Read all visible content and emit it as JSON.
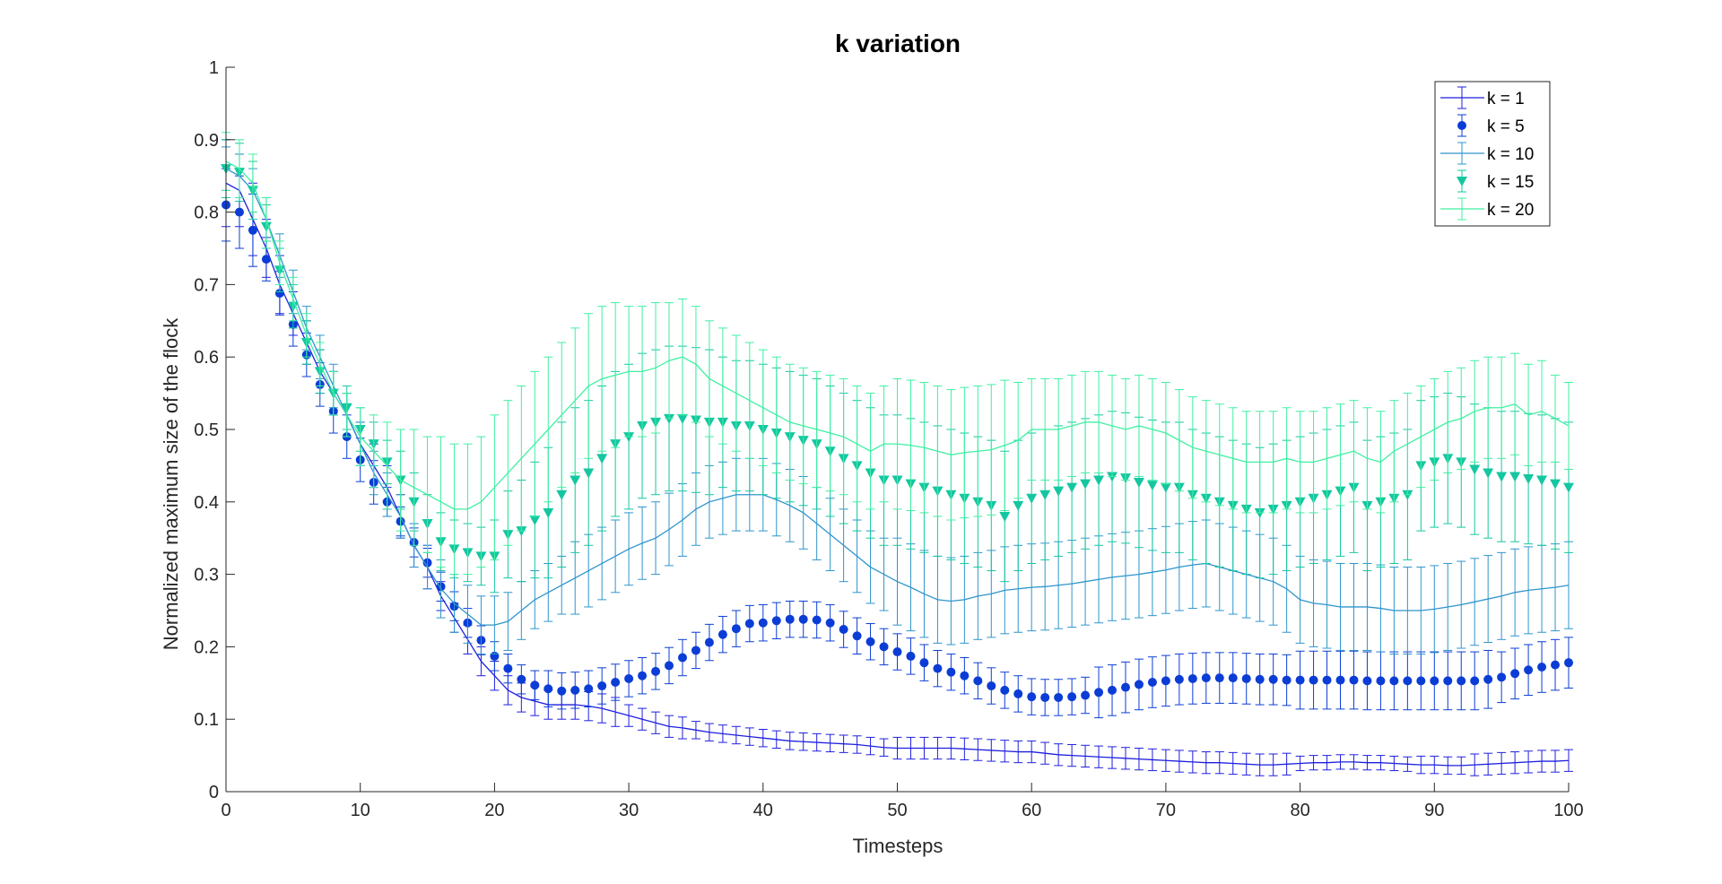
{
  "chart_data": {
    "type": "line",
    "title": "k variation",
    "xlabel": "Timesteps",
    "ylabel": "Normalized maximum size of the flock",
    "xlim": [
      0,
      100
    ],
    "ylim": [
      0,
      1
    ],
    "x_ticks": [
      0,
      10,
      20,
      30,
      40,
      50,
      60,
      70,
      80,
      90,
      100
    ],
    "y_ticks": [
      0,
      0.1,
      0.2,
      0.3,
      0.4,
      0.5,
      0.6,
      0.7,
      0.8,
      0.9,
      1
    ],
    "x_tick_labels": [
      "0",
      "10",
      "20",
      "30",
      "40",
      "50",
      "60",
      "70",
      "80",
      "90",
      "100"
    ],
    "y_tick_labels": [
      "0",
      "0.1",
      "0.2",
      "0.3",
      "0.4",
      "0.5",
      "0.6",
      "0.7",
      "0.8",
      "0.9",
      "1"
    ],
    "grid": false,
    "legend_position": "top-right",
    "x": [
      0,
      1,
      2,
      3,
      4,
      5,
      6,
      7,
      8,
      9,
      10,
      11,
      12,
      13,
      14,
      15,
      16,
      17,
      18,
      19,
      20,
      21,
      22,
      23,
      24,
      25,
      26,
      27,
      28,
      29,
      30,
      31,
      32,
      33,
      34,
      35,
      36,
      37,
      38,
      39,
      40,
      41,
      42,
      43,
      44,
      45,
      46,
      47,
      48,
      49,
      50,
      51,
      52,
      53,
      54,
      55,
      56,
      57,
      58,
      59,
      60,
      61,
      62,
      63,
      64,
      65,
      66,
      67,
      68,
      69,
      70,
      71,
      72,
      73,
      74,
      75,
      76,
      77,
      78,
      79,
      80,
      81,
      82,
      83,
      84,
      85,
      86,
      87,
      88,
      89,
      90,
      91,
      92,
      93,
      94,
      95,
      96,
      97,
      98,
      99,
      100
    ],
    "series": [
      {
        "name": "k = 1",
        "style": "line",
        "color": "#1f1fe0",
        "values": [
          0.84,
          0.83,
          0.79,
          0.75,
          0.7,
          0.66,
          0.62,
          0.58,
          0.55,
          0.52,
          0.48,
          0.45,
          0.42,
          0.38,
          0.34,
          0.31,
          0.27,
          0.24,
          0.21,
          0.18,
          0.16,
          0.14,
          0.13,
          0.125,
          0.12,
          0.12,
          0.12,
          0.118,
          0.115,
          0.11,
          0.105,
          0.1,
          0.095,
          0.09,
          0.088,
          0.085,
          0.082,
          0.08,
          0.078,
          0.076,
          0.074,
          0.072,
          0.07,
          0.069,
          0.068,
          0.067,
          0.066,
          0.065,
          0.063,
          0.061,
          0.06,
          0.06,
          0.06,
          0.06,
          0.06,
          0.059,
          0.058,
          0.057,
          0.056,
          0.055,
          0.055,
          0.053,
          0.051,
          0.05,
          0.049,
          0.048,
          0.047,
          0.046,
          0.045,
          0.044,
          0.043,
          0.042,
          0.041,
          0.04,
          0.04,
          0.039,
          0.038,
          0.037,
          0.037,
          0.038,
          0.039,
          0.04,
          0.04,
          0.041,
          0.041,
          0.04,
          0.04,
          0.039,
          0.038,
          0.037,
          0.037,
          0.036,
          0.036,
          0.037,
          0.038,
          0.039,
          0.04,
          0.041,
          0.042,
          0.042,
          0.043
        ],
        "errors": [
          0.06,
          0.05,
          0.05,
          0.04,
          0.04,
          0.03,
          0.03,
          0.03,
          0.03,
          0.03,
          0.03,
          0.03,
          0.03,
          0.03,
          0.03,
          0.03,
          0.02,
          0.02,
          0.02,
          0.02,
          0.02,
          0.02,
          0.02,
          0.02,
          0.02,
          0.02,
          0.02,
          0.02,
          0.02,
          0.02,
          0.015,
          0.015,
          0.015,
          0.015,
          0.015,
          0.012,
          0.012,
          0.012,
          0.012,
          0.012,
          0.012,
          0.012,
          0.012,
          0.012,
          0.012,
          0.012,
          0.012,
          0.012,
          0.012,
          0.012,
          0.015,
          0.015,
          0.015,
          0.015,
          0.015,
          0.015,
          0.015,
          0.015,
          0.015,
          0.015,
          0.015,
          0.015,
          0.015,
          0.015,
          0.015,
          0.015,
          0.015,
          0.015,
          0.015,
          0.015,
          0.015,
          0.015,
          0.015,
          0.015,
          0.015,
          0.015,
          0.015,
          0.015,
          0.015,
          0.015,
          0.01,
          0.01,
          0.01,
          0.01,
          0.01,
          0.01,
          0.01,
          0.01,
          0.01,
          0.012,
          0.012,
          0.012,
          0.012,
          0.015,
          0.015,
          0.015,
          0.015,
          0.015,
          0.015,
          0.015,
          0.015
        ]
      },
      {
        "name": "k = 5",
        "style": "marker-circle",
        "color": "#0b3dd6",
        "values": [
          0.81,
          0.8,
          0.775,
          0.735,
          0.688,
          0.645,
          0.603,
          0.562,
          0.525,
          0.49,
          0.458,
          0.427,
          0.4,
          0.373,
          0.344,
          0.316,
          0.283,
          0.256,
          0.233,
          0.209,
          0.187,
          0.17,
          0.155,
          0.147,
          0.142,
          0.139,
          0.14,
          0.142,
          0.146,
          0.151,
          0.156,
          0.16,
          0.166,
          0.174,
          0.185,
          0.195,
          0.206,
          0.217,
          0.225,
          0.232,
          0.233,
          0.236,
          0.238,
          0.238,
          0.237,
          0.233,
          0.224,
          0.215,
          0.207,
          0.2,
          0.193,
          0.187,
          0.178,
          0.17,
          0.165,
          0.16,
          0.153,
          0.146,
          0.14,
          0.135,
          0.131,
          0.13,
          0.13,
          0.131,
          0.133,
          0.137,
          0.14,
          0.144,
          0.148,
          0.151,
          0.153,
          0.155,
          0.156,
          0.157,
          0.157,
          0.157,
          0.156,
          0.155,
          0.155,
          0.154,
          0.154,
          0.154,
          0.154,
          0.154,
          0.154,
          0.153,
          0.153,
          0.153,
          0.153,
          0.153,
          0.153,
          0.153,
          0.153,
          0.153,
          0.155,
          0.158,
          0.163,
          0.168,
          0.172,
          0.175,
          0.178
        ],
        "errors": [
          0.05,
          0.05,
          0.05,
          0.03,
          0.03,
          0.03,
          0.03,
          0.03,
          0.03,
          0.03,
          0.03,
          0.03,
          0.02,
          0.02,
          0.02,
          0.02,
          0.02,
          0.02,
          0.02,
          0.02,
          0.02,
          0.02,
          0.02,
          0.02,
          0.025,
          0.025,
          0.025,
          0.025,
          0.025,
          0.025,
          0.025,
          0.025,
          0.025,
          0.025,
          0.025,
          0.025,
          0.025,
          0.025,
          0.025,
          0.025,
          0.025,
          0.025,
          0.025,
          0.025,
          0.025,
          0.025,
          0.025,
          0.025,
          0.025,
          0.025,
          0.025,
          0.025,
          0.025,
          0.025,
          0.025,
          0.025,
          0.025,
          0.025,
          0.025,
          0.025,
          0.025,
          0.025,
          0.025,
          0.025,
          0.025,
          0.035,
          0.035,
          0.035,
          0.035,
          0.035,
          0.035,
          0.035,
          0.035,
          0.035,
          0.035,
          0.035,
          0.035,
          0.035,
          0.035,
          0.035,
          0.04,
          0.04,
          0.04,
          0.04,
          0.04,
          0.04,
          0.04,
          0.04,
          0.04,
          0.04,
          0.04,
          0.04,
          0.04,
          0.04,
          0.04,
          0.035,
          0.035,
          0.035,
          0.035,
          0.035,
          0.035
        ]
      },
      {
        "name": "k = 10",
        "style": "line",
        "color": "#2e95cc",
        "values": [
          0.86,
          0.85,
          0.83,
          0.79,
          0.74,
          0.69,
          0.64,
          0.6,
          0.56,
          0.52,
          0.48,
          0.44,
          0.41,
          0.38,
          0.34,
          0.31,
          0.28,
          0.26,
          0.245,
          0.23,
          0.23,
          0.235,
          0.25,
          0.265,
          0.275,
          0.285,
          0.295,
          0.305,
          0.315,
          0.325,
          0.335,
          0.343,
          0.35,
          0.362,
          0.375,
          0.39,
          0.4,
          0.405,
          0.41,
          0.41,
          0.41,
          0.403,
          0.395,
          0.385,
          0.37,
          0.355,
          0.34,
          0.325,
          0.31,
          0.3,
          0.29,
          0.282,
          0.273,
          0.265,
          0.263,
          0.265,
          0.27,
          0.273,
          0.278,
          0.28,
          0.282,
          0.283,
          0.285,
          0.287,
          0.29,
          0.293,
          0.296,
          0.298,
          0.3,
          0.303,
          0.306,
          0.31,
          0.313,
          0.315,
          0.31,
          0.305,
          0.3,
          0.295,
          0.29,
          0.28,
          0.265,
          0.26,
          0.258,
          0.255,
          0.255,
          0.255,
          0.253,
          0.25,
          0.25,
          0.25,
          0.252,
          0.255,
          0.258,
          0.262,
          0.266,
          0.27,
          0.275,
          0.278,
          0.28,
          0.282,
          0.285
        ],
        "errors": [
          0.03,
          0.03,
          0.03,
          0.03,
          0.03,
          0.03,
          0.03,
          0.03,
          0.03,
          0.03,
          0.03,
          0.03,
          0.03,
          0.03,
          0.03,
          0.03,
          0.04,
          0.04,
          0.04,
          0.04,
          0.04,
          0.04,
          0.04,
          0.04,
          0.04,
          0.04,
          0.05,
          0.05,
          0.05,
          0.05,
          0.05,
          0.05,
          0.05,
          0.05,
          0.05,
          0.05,
          0.05,
          0.05,
          0.05,
          0.05,
          0.05,
          0.05,
          0.05,
          0.05,
          0.05,
          0.05,
          0.05,
          0.05,
          0.05,
          0.05,
          0.06,
          0.06,
          0.06,
          0.06,
          0.06,
          0.06,
          0.06,
          0.06,
          0.06,
          0.06,
          0.06,
          0.06,
          0.06,
          0.06,
          0.06,
          0.06,
          0.06,
          0.06,
          0.06,
          0.06,
          0.06,
          0.06,
          0.06,
          0.06,
          0.06,
          0.06,
          0.06,
          0.06,
          0.06,
          0.06,
          0.06,
          0.06,
          0.06,
          0.06,
          0.06,
          0.06,
          0.06,
          0.06,
          0.06,
          0.06,
          0.06,
          0.06,
          0.06,
          0.06,
          0.06,
          0.06,
          0.06,
          0.06,
          0.06,
          0.06,
          0.06
        ]
      },
      {
        "name": "k = 15",
        "style": "marker-triangle-down",
        "color": "#14c7a0",
        "values": [
          0.86,
          0.855,
          0.83,
          0.78,
          0.72,
          0.67,
          0.62,
          0.58,
          0.55,
          0.53,
          0.5,
          0.48,
          0.455,
          0.43,
          0.4,
          0.37,
          0.345,
          0.335,
          0.33,
          0.325,
          0.325,
          0.355,
          0.36,
          0.375,
          0.385,
          0.41,
          0.43,
          0.44,
          0.46,
          0.48,
          0.49,
          0.505,
          0.51,
          0.515,
          0.515,
          0.513,
          0.51,
          0.51,
          0.505,
          0.505,
          0.5,
          0.495,
          0.49,
          0.485,
          0.48,
          0.47,
          0.46,
          0.45,
          0.44,
          0.43,
          0.43,
          0.425,
          0.42,
          0.415,
          0.41,
          0.405,
          0.4,
          0.395,
          0.38,
          0.395,
          0.405,
          0.41,
          0.415,
          0.42,
          0.425,
          0.43,
          0.435,
          0.433,
          0.427,
          0.423,
          0.42,
          0.42,
          0.41,
          0.405,
          0.4,
          0.395,
          0.39,
          0.385,
          0.39,
          0.395,
          0.4,
          0.405,
          0.41,
          0.415,
          0.42,
          0.395,
          0.4,
          0.405,
          0.41,
          0.45,
          0.455,
          0.46,
          0.455,
          0.445,
          0.44,
          0.435,
          0.435,
          0.432,
          0.43,
          0.425,
          0.42
        ],
        "errors": [
          0.04,
          0.04,
          0.04,
          0.03,
          0.03,
          0.03,
          0.03,
          0.03,
          0.03,
          0.03,
          0.03,
          0.03,
          0.03,
          0.04,
          0.04,
          0.04,
          0.04,
          0.04,
          0.04,
          0.04,
          0.05,
          0.06,
          0.07,
          0.08,
          0.09,
          0.1,
          0.1,
          0.1,
          0.1,
          0.1,
          0.1,
          0.1,
          0.1,
          0.1,
          0.1,
          0.1,
          0.1,
          0.09,
          0.09,
          0.09,
          0.09,
          0.09,
          0.09,
          0.09,
          0.09,
          0.09,
          0.09,
          0.09,
          0.09,
          0.09,
          0.09,
          0.09,
          0.09,
          0.09,
          0.09,
          0.09,
          0.09,
          0.09,
          0.09,
          0.09,
          0.09,
          0.09,
          0.09,
          0.09,
          0.09,
          0.09,
          0.09,
          0.09,
          0.09,
          0.09,
          0.09,
          0.09,
          0.09,
          0.09,
          0.09,
          0.09,
          0.09,
          0.09,
          0.09,
          0.09,
          0.09,
          0.09,
          0.09,
          0.09,
          0.09,
          0.09,
          0.09,
          0.09,
          0.09,
          0.09,
          0.09,
          0.09,
          0.09,
          0.09,
          0.09,
          0.09,
          0.09,
          0.09,
          0.09,
          0.09,
          0.09
        ]
      },
      {
        "name": "k = 20",
        "style": "line",
        "color": "#3ff0a2",
        "values": [
          0.87,
          0.86,
          0.84,
          0.79,
          0.73,
          0.68,
          0.63,
          0.59,
          0.55,
          0.52,
          0.49,
          0.47,
          0.45,
          0.43,
          0.42,
          0.41,
          0.4,
          0.39,
          0.39,
          0.4,
          0.42,
          0.44,
          0.46,
          0.48,
          0.5,
          0.52,
          0.54,
          0.56,
          0.57,
          0.575,
          0.58,
          0.58,
          0.585,
          0.595,
          0.6,
          0.59,
          0.57,
          0.56,
          0.55,
          0.54,
          0.53,
          0.52,
          0.51,
          0.505,
          0.5,
          0.495,
          0.49,
          0.48,
          0.47,
          0.48,
          0.48,
          0.478,
          0.475,
          0.47,
          0.465,
          0.468,
          0.47,
          0.472,
          0.478,
          0.485,
          0.5,
          0.5,
          0.5,
          0.505,
          0.51,
          0.51,
          0.505,
          0.5,
          0.505,
          0.5,
          0.495,
          0.485,
          0.475,
          0.47,
          0.465,
          0.46,
          0.455,
          0.455,
          0.455,
          0.46,
          0.455,
          0.455,
          0.46,
          0.465,
          0.47,
          0.46,
          0.455,
          0.47,
          0.48,
          0.49,
          0.5,
          0.51,
          0.515,
          0.525,
          0.53,
          0.53,
          0.535,
          0.52,
          0.525,
          0.515,
          0.505
        ],
        "errors": [
          0.04,
          0.04,
          0.04,
          0.03,
          0.03,
          0.03,
          0.03,
          0.03,
          0.03,
          0.03,
          0.04,
          0.05,
          0.06,
          0.07,
          0.08,
          0.08,
          0.09,
          0.09,
          0.09,
          0.09,
          0.1,
          0.1,
          0.1,
          0.1,
          0.1,
          0.1,
          0.1,
          0.1,
          0.1,
          0.1,
          0.09,
          0.09,
          0.09,
          0.08,
          0.08,
          0.08,
          0.08,
          0.08,
          0.08,
          0.08,
          0.08,
          0.08,
          0.08,
          0.08,
          0.08,
          0.08,
          0.08,
          0.08,
          0.08,
          0.08,
          0.09,
          0.09,
          0.09,
          0.09,
          0.09,
          0.09,
          0.09,
          0.09,
          0.09,
          0.08,
          0.07,
          0.07,
          0.07,
          0.07,
          0.07,
          0.07,
          0.07,
          0.07,
          0.07,
          0.07,
          0.07,
          0.07,
          0.07,
          0.07,
          0.07,
          0.07,
          0.07,
          0.07,
          0.07,
          0.07,
          0.07,
          0.07,
          0.07,
          0.07,
          0.07,
          0.07,
          0.07,
          0.07,
          0.07,
          0.07,
          0.07,
          0.07,
          0.07,
          0.07,
          0.07,
          0.07,
          0.07,
          0.07,
          0.07,
          0.06,
          0.06
        ]
      }
    ]
  }
}
